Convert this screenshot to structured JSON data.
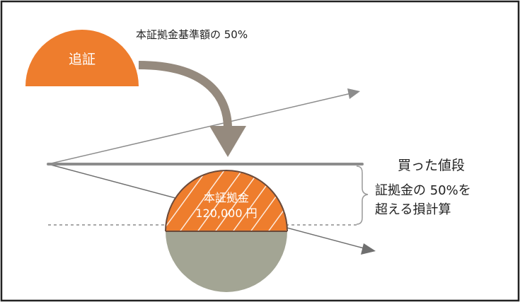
{
  "labels": {
    "oishou": "追証",
    "top_note": "本証拠金基準額の 50%",
    "bought_price": "買った値段",
    "margin_title": "本証拠金",
    "margin_amount": "120,000 円",
    "loss_line1": "証拠金の 50%を",
    "loss_line2": "超える損計算"
  },
  "colors": {
    "orange": "#ee7d2d",
    "gray_arrow": "#958a7e",
    "line_gray": "#8c8c8c",
    "dark_line": "#6f6f6f",
    "olive_gray": "#a3a594",
    "frame": "#222222"
  }
}
